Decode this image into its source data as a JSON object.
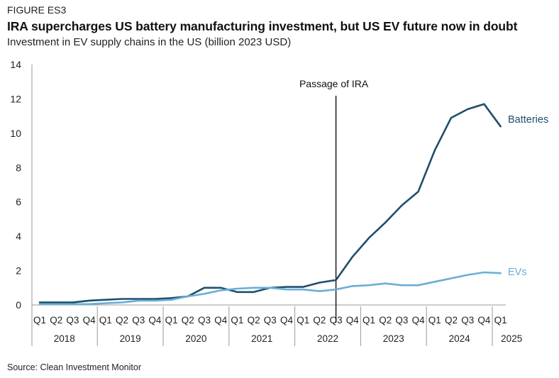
{
  "figure": {
    "label": "FIGURE ES3",
    "title": "IRA supercharges US battery manufacturing investment, but US EV future now in doubt",
    "subtitle": "Investment in EV supply chains in the US (billion 2023 USD)",
    "source": "Source: Clean Investment Monitor"
  },
  "colors": {
    "batteries": "#1f4e6b",
    "evs": "#6aaed6",
    "axis": "#999999",
    "annotation": "#000000"
  },
  "chart_data": {
    "type": "line",
    "title": "IRA supercharges US battery manufacturing investment, but US EV future now in doubt",
    "ylabel": "Investment in EV supply chains in the US (billion 2023 USD)",
    "ylim": [
      0,
      14
    ],
    "yticks": [
      0,
      2,
      4,
      6,
      8,
      10,
      12,
      14
    ],
    "grid": false,
    "quarter_labels": [
      "Q1",
      "Q2",
      "Q3",
      "Q4",
      "Q1",
      "Q2",
      "Q3",
      "Q4",
      "Q1",
      "Q2",
      "Q3",
      "Q4",
      "Q1",
      "Q2",
      "Q3",
      "Q4",
      "Q1",
      "Q2",
      "Q3",
      "Q4",
      "Q1",
      "Q2",
      "Q3",
      "Q4",
      "Q1",
      "Q2",
      "Q3",
      "Q4",
      "Q1"
    ],
    "years": [
      {
        "label": "2018",
        "start": 0,
        "count": 4
      },
      {
        "label": "2019",
        "start": 4,
        "count": 4
      },
      {
        "label": "2020",
        "start": 8,
        "count": 4
      },
      {
        "label": "2021",
        "start": 12,
        "count": 4
      },
      {
        "label": "2022",
        "start": 16,
        "count": 4
      },
      {
        "label": "2023",
        "start": 20,
        "count": 4
      },
      {
        "label": "2024",
        "start": 24,
        "count": 4
      },
      {
        "label": "2025",
        "start": 28,
        "count": 1
      }
    ],
    "series": [
      {
        "name": "Batteries",
        "values": [
          0.15,
          0.15,
          0.15,
          0.25,
          0.3,
          0.35,
          0.35,
          0.35,
          0.4,
          0.5,
          1.0,
          1.0,
          0.75,
          0.75,
          1.0,
          1.05,
          1.05,
          1.3,
          1.45,
          2.8,
          3.9,
          4.8,
          5.8,
          6.6,
          9.0,
          10.9,
          11.4,
          11.7,
          10.4
        ]
      },
      {
        "name": "EVs",
        "values": [
          0.05,
          0.05,
          0.05,
          0.05,
          0.1,
          0.15,
          0.25,
          0.25,
          0.3,
          0.5,
          0.65,
          0.85,
          0.95,
          1.0,
          1.0,
          0.9,
          0.9,
          0.8,
          0.9,
          1.1,
          1.15,
          1.25,
          1.15,
          1.15,
          1.35,
          1.55,
          1.75,
          1.9,
          1.85
        ]
      }
    ],
    "annotations": [
      {
        "text": "Passage of IRA",
        "at_quarter_index": 18
      }
    ]
  }
}
